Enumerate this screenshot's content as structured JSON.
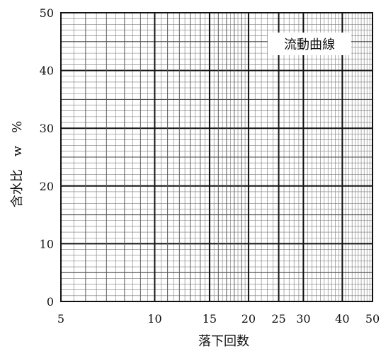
{
  "chart_data": {
    "type": "line",
    "title": "",
    "legend_label": "流動曲線",
    "legend_position": "top-right",
    "xlabel": "落下回数",
    "ylabel": "含水比　w　%",
    "x_scale": "log",
    "xlim": [
      5,
      50
    ],
    "ylim": [
      0,
      50
    ],
    "grid": true,
    "x_ticks": [
      5,
      10,
      15,
      20,
      25,
      30,
      40,
      50
    ],
    "y_ticks": [
      0,
      10,
      20,
      30,
      40,
      50
    ],
    "series": []
  }
}
